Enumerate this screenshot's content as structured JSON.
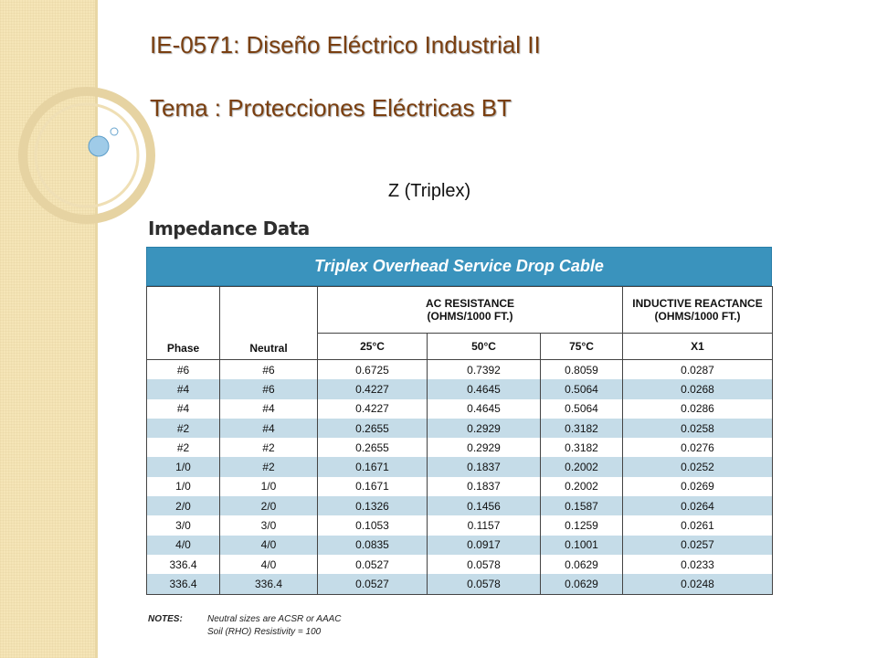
{
  "slide": {
    "title_line1": "IE-0571: Diseño Eléctrico Industrial II",
    "title_line2": "Tema : Protecciones Eléctricas BT",
    "subtitle": "Z (Triplex)"
  },
  "figure": {
    "heading": "Impedance Data",
    "banner": "Triplex Overhead Service Drop Cable",
    "headers": {
      "phase": "Phase",
      "neutral": "Neutral",
      "ac_resistance": "AC RESISTANCE",
      "ac_resistance_units": "(OHMS/1000 FT.)",
      "inductive_reactance": "INDUCTIVE REACTANCE",
      "inductive_reactance_units": "(OHMS/1000 FT.)",
      "t25": "25°C",
      "t50": "50°C",
      "t75": "75°C",
      "x1": "X1"
    },
    "rows": [
      [
        "#6",
        "#6",
        "0.6725",
        "0.7392",
        "0.8059",
        "0.0287"
      ],
      [
        "#4",
        "#6",
        "0.4227",
        "0.4645",
        "0.5064",
        "0.0268"
      ],
      [
        "#4",
        "#4",
        "0.4227",
        "0.4645",
        "0.5064",
        "0.0286"
      ],
      [
        "#2",
        "#4",
        "0.2655",
        "0.2929",
        "0.3182",
        "0.0258"
      ],
      [
        "#2",
        "#2",
        "0.2655",
        "0.2929",
        "0.3182",
        "0.0276"
      ],
      [
        "1/0",
        "#2",
        "0.1671",
        "0.1837",
        "0.2002",
        "0.0252"
      ],
      [
        "1/0",
        "1/0",
        "0.1671",
        "0.1837",
        "0.2002",
        "0.0269"
      ],
      [
        "2/0",
        "2/0",
        "0.1326",
        "0.1456",
        "0.1587",
        "0.0264"
      ],
      [
        "3/0",
        "3/0",
        "0.1053",
        "0.1157",
        "0.1259",
        "0.0261"
      ],
      [
        "4/0",
        "4/0",
        "0.0835",
        "0.0917",
        "0.1001",
        "0.0257"
      ],
      [
        "336.4",
        "4/0",
        "0.0527",
        "0.0578",
        "0.0629",
        "0.0233"
      ],
      [
        "336.4",
        "336.4",
        "0.0527",
        "0.0578",
        "0.0629",
        "0.0248"
      ]
    ],
    "notes_label": "NOTES:",
    "notes": [
      "Neutral sizes are ACSR or AAAC",
      "Soil (RHO) Resistivity = 100"
    ]
  },
  "colors": {
    "band": "#f5e5b7",
    "title": "#7a3f10",
    "banner": "#3a93bd",
    "row_stripe": "#c5dce8"
  }
}
